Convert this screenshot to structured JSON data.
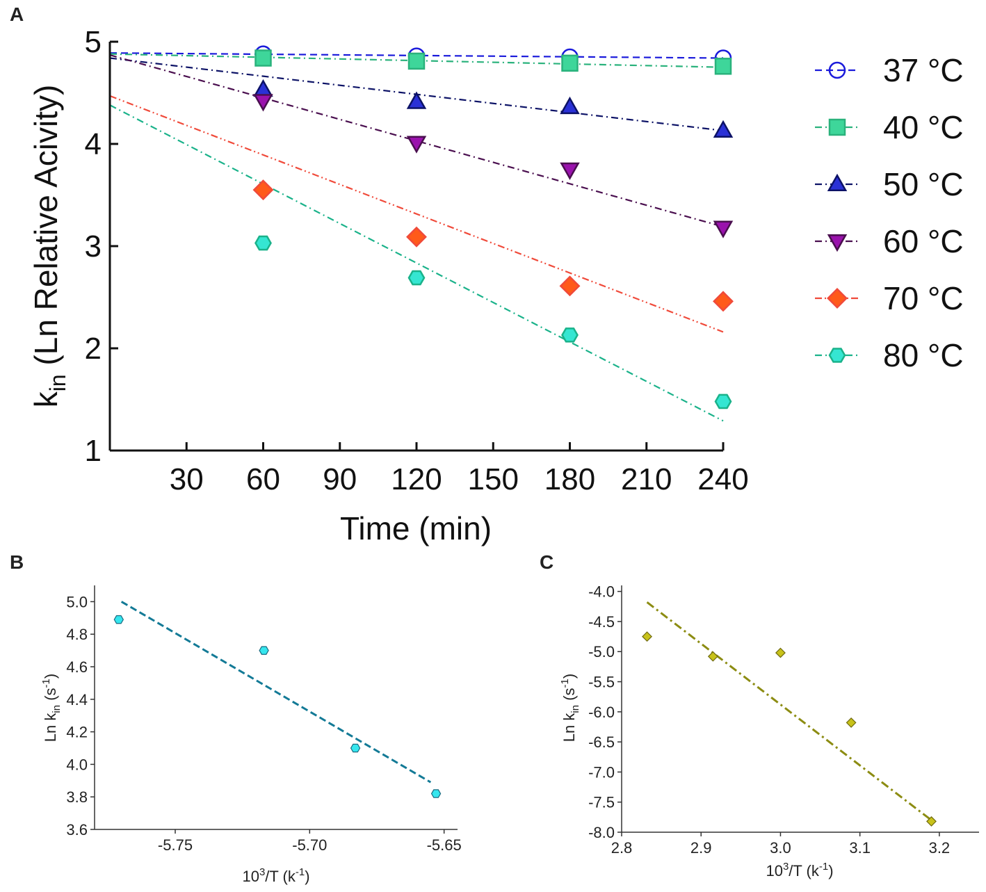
{
  "panels": {
    "a": "A",
    "b": "B",
    "c": "C"
  },
  "chart_data": [
    {
      "id": "A",
      "type": "scatter",
      "xlabel": "Time (min)",
      "ylabel_main": "k",
      "ylabel_sub": "in",
      "ylabel_rest": " (Ln Relative Acivity)",
      "xlim": [
        0,
        240
      ],
      "ylim": [
        1,
        5
      ],
      "xticks": [
        30,
        60,
        90,
        120,
        150,
        180,
        210,
        240
      ],
      "yticks": [
        1,
        2,
        3,
        4,
        5
      ],
      "series": [
        {
          "name": "37 °C",
          "color": "#1a1adb",
          "fill": "none",
          "marker": "circle",
          "dash": "dashed",
          "x": [
            60,
            120,
            180,
            240
          ],
          "y": [
            4.88,
            4.86,
            4.85,
            4.84
          ],
          "fit": [
            4.89,
            4.84
          ]
        },
        {
          "name": "40 °C",
          "color": "#2ab27c",
          "fill": "#3ed69a",
          "marker": "square",
          "dash": "dashdot",
          "x": [
            60,
            120,
            180,
            240
          ],
          "y": [
            4.84,
            4.81,
            4.79,
            4.76
          ],
          "fit": [
            4.88,
            4.75
          ]
        },
        {
          "name": "50 °C",
          "color": "#0c1266",
          "fill": "#2a31d6",
          "marker": "triangle-up",
          "dash": "dashdot",
          "x": [
            60,
            120,
            180,
            240
          ],
          "y": [
            4.53,
            4.41,
            4.36,
            4.13
          ],
          "fit": [
            4.84,
            4.13
          ]
        },
        {
          "name": "60 °C",
          "color": "#4a0f4f",
          "fill": "#9a12ad",
          "marker": "triangle-down",
          "dash": "dashdot",
          "x": [
            60,
            120,
            180,
            240
          ],
          "y": [
            4.42,
            4.01,
            3.75,
            3.18
          ],
          "fit": [
            4.87,
            3.19
          ]
        },
        {
          "name": "70 °C",
          "color": "#f04a3a",
          "fill": "#ff5a1a",
          "marker": "diamond",
          "dash": "dashdotdot",
          "x": [
            60,
            120,
            180,
            240
          ],
          "y": [
            3.55,
            3.09,
            2.61,
            2.46
          ],
          "fit": [
            4.47,
            2.16
          ]
        },
        {
          "name": "80 °C",
          "color": "#1ab28a",
          "fill": "#35e6d2",
          "marker": "hexagon",
          "dash": "dashdot",
          "x": [
            60,
            120,
            180,
            240
          ],
          "y": [
            3.03,
            2.69,
            2.13,
            1.48
          ],
          "fit": [
            4.38,
            1.29
          ]
        }
      ]
    },
    {
      "id": "B",
      "type": "scatter",
      "xlabel_pre": "10",
      "xlabel_sup": "3",
      "xlabel_post": "/T (k",
      "xlabel_sup2": "-1",
      "xlabel_end": ")",
      "ylabel_pre": "Ln k",
      "ylabel_sub": "in",
      "ylabel_mid": " (s",
      "ylabel_sup": "-1",
      "ylabel_end": ")",
      "xlim": [
        -5.78,
        -5.645
      ],
      "ylim": [
        3.6,
        5.1
      ],
      "xticks": [
        -5.75,
        -5.7,
        -5.65
      ],
      "xticklabels": [
        "-5.75",
        "-5.70",
        "-5.65"
      ],
      "yticks": [
        3.6,
        3.8,
        4.0,
        4.2,
        4.4,
        4.6,
        4.8,
        5.0
      ],
      "yticklabels": [
        "3.6",
        "3.8",
        "4.0",
        "4.2",
        "4.4",
        "4.6",
        "4.8",
        "5.0"
      ],
      "points": {
        "x": [
          -5.771,
          -5.717,
          -5.683,
          -5.653
        ],
        "y": [
          4.89,
          4.7,
          4.1,
          3.82
        ]
      },
      "fit": {
        "x": [
          -5.77,
          -5.655
        ],
        "y": [
          5.0,
          3.89
        ]
      },
      "point_color": "#35e6ee",
      "point_stroke": "#1a6a80",
      "line_color": "#137a96"
    },
    {
      "id": "C",
      "type": "scatter",
      "xlabel_pre": "10",
      "xlabel_sup": "3",
      "xlabel_post": "/T (k",
      "xlabel_sup2": "-1",
      "xlabel_end": ")",
      "ylabel_pre": "Ln k",
      "ylabel_sub": "in",
      "ylabel_mid": " (s",
      "ylabel_sup": "-1",
      "ylabel_end": ")",
      "xlim": [
        2.8,
        3.25
      ],
      "ylim": [
        -8.0,
        -3.9
      ],
      "xticks": [
        2.8,
        2.9,
        3.0,
        3.1,
        3.2
      ],
      "xticklabels": [
        "2.8",
        "2.9",
        "3.0",
        "3.1",
        "3.2"
      ],
      "yticks": [
        -8.0,
        -7.5,
        -7.0,
        -6.5,
        -6.0,
        -5.5,
        -5.0,
        -4.5,
        -4.0
      ],
      "yticklabels": [
        "-8.0",
        "-7.5",
        "-7.0",
        "-6.5",
        "-6.0",
        "-5.5",
        "-5.0",
        "-4.5",
        "-4.0"
      ],
      "points": {
        "x": [
          2.832,
          2.915,
          3.0,
          3.089,
          3.19
        ],
        "y": [
          -4.75,
          -5.08,
          -5.02,
          -6.18,
          -7.82
        ]
      },
      "fit": {
        "x": [
          2.832,
          3.19
        ],
        "y": [
          -4.18,
          -7.8
        ]
      },
      "point_color": "#c8c21a",
      "point_stroke": "#6f6a10",
      "line_color": "#8c8c12"
    }
  ]
}
